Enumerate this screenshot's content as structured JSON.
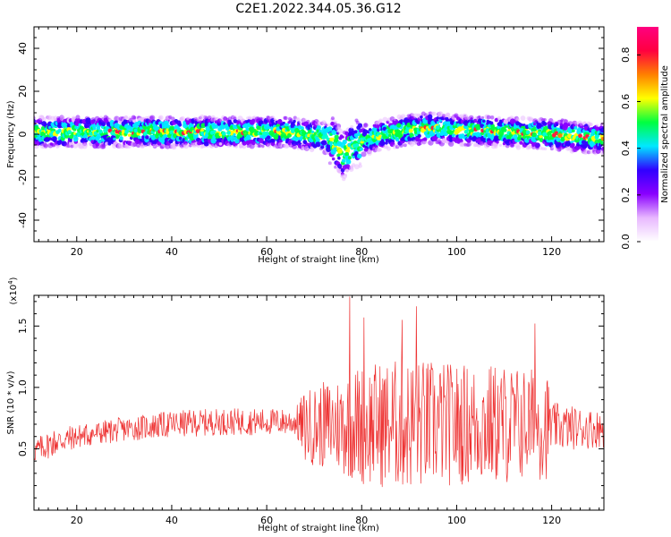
{
  "title": "C2E1.2022.344.05.36.G12",
  "chart_data": [
    {
      "type": "heatmap",
      "xlabel": "Height of straight line (km)",
      "ylabel": "Frequency (Hz)",
      "xlim": [
        11,
        131
      ],
      "ylim": [
        -50,
        50
      ],
      "xticks": [
        20,
        40,
        60,
        80,
        100,
        120
      ],
      "yticks": [
        -40,
        -20,
        0,
        20,
        40
      ],
      "colorbar": {
        "label": "Normalized spectral amplitude",
        "range": [
          0.0,
          0.92
        ],
        "ticks": [
          "0.0",
          "0.2",
          "0.4",
          "0.6",
          "0.8"
        ],
        "colors": [
          "#ffffff",
          "#e8b8ff",
          "#8a00ff",
          "#3000ff",
          "#00e8ff",
          "#00ff40",
          "#ffff00",
          "#ff8000",
          "#ff0040",
          "#ff0080"
        ]
      },
      "ridge": {
        "x": [
          11,
          20,
          30,
          40,
          50,
          60,
          65,
          68,
          72,
          74,
          76,
          78,
          80,
          85,
          90,
          95,
          100,
          110,
          120,
          125,
          131
        ],
        "y": [
          1,
          1,
          1,
          1,
          1,
          1,
          1,
          0,
          -1,
          -3,
          -10,
          -6,
          -3,
          0,
          2,
          3,
          2,
          1,
          0,
          -1,
          -2
        ]
      }
    },
    {
      "type": "line",
      "xlabel": "Height of straight line (km)",
      "ylabel": "SNR (10 * v/v)",
      "y_multiplier": "(x10^4)",
      "xlim": [
        11,
        131
      ],
      "ylim": [
        0,
        1.75
      ],
      "xticks": [
        20,
        40,
        60,
        80,
        100,
        120
      ],
      "yticks": [
        0.5,
        1.0,
        1.5
      ],
      "color": "#ee3333",
      "envelope": {
        "x": [
          11,
          15,
          20,
          30,
          40,
          50,
          60,
          66,
          68,
          75,
          80,
          90,
          100,
          110,
          119,
          120,
          131
        ],
        "baseline": [
          0.48,
          0.55,
          0.6,
          0.66,
          0.7,
          0.72,
          0.72,
          0.72,
          0.68,
          0.7,
          0.7,
          0.7,
          0.7,
          0.7,
          0.7,
          0.68,
          0.66
        ],
        "amplitude": [
          0.1,
          0.12,
          0.1,
          0.1,
          0.11,
          0.11,
          0.11,
          0.11,
          0.3,
          0.4,
          0.5,
          0.55,
          0.5,
          0.5,
          0.45,
          0.2,
          0.15
        ]
      },
      "peaks": {
        "x": [
          77.5,
          91.5,
          80.5,
          88.5,
          116.5
        ],
        "y": [
          1.74,
          1.66,
          1.57,
          1.55,
          1.52
        ]
      }
    }
  ]
}
